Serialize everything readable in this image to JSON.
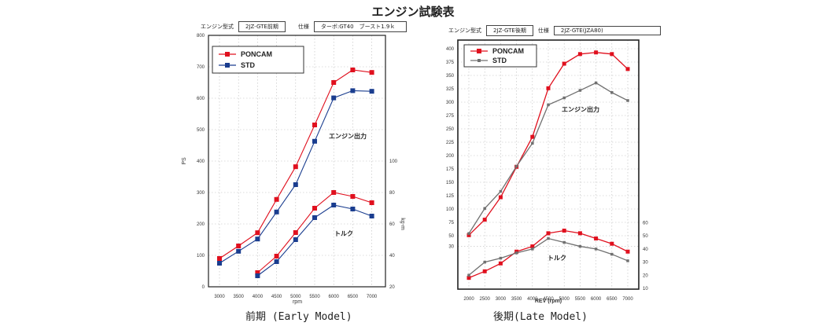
{
  "title": "エンジン試験表",
  "colors": {
    "poncam": "#e0101e",
    "std_early": "#1a3d8f",
    "std_late": "#707070"
  },
  "chart_data": [
    {
      "type": "line",
      "name": "early",
      "caption": "前期 (Early Model)",
      "header": {
        "engine_label": "エンジン型式",
        "engine_value": "2JZ-GTE前期",
        "spec_label": "仕様",
        "spec_value": "ターボ:GT40　ブースト1.9ｋ"
      },
      "xlabel": "rpm",
      "ylabel": "PS",
      "y2label": "kg-m",
      "x": [
        3000,
        3500,
        4000,
        4500,
        5000,
        5500,
        6000,
        6500,
        7000
      ],
      "xticks": [
        "3000",
        "3500",
        "4000",
        "4500",
        "5000",
        "5500",
        "6000",
        "6500",
        "7000"
      ],
      "ylim": [
        0,
        800
      ],
      "yticks": [
        "0",
        "100",
        "200",
        "300",
        "400",
        "500",
        "600",
        "700",
        "800"
      ],
      "y2lim": [
        20,
        180
      ],
      "y2ticks": [
        "20",
        "40",
        "60",
        "80",
        "100"
      ],
      "annotations": {
        "power": "エンジン出力",
        "torque": "トルク"
      },
      "legend": [
        "PONCAM",
        "STD"
      ],
      "legend_position": "top-left",
      "grid": true,
      "series": [
        {
          "name": "PONCAM",
          "kind": "power",
          "values": [
            90,
            130,
            172,
            278,
            382,
            515,
            650,
            690,
            682
          ]
        },
        {
          "name": "STD",
          "kind": "power",
          "values": [
            75,
            113,
            152,
            238,
            325,
            463,
            601,
            624,
            622
          ]
        },
        {
          "name": "PONCAM",
          "kind": "torque",
          "values": [
            null,
            null,
            29,
            39.5,
            54.5,
            70,
            80,
            77.5,
            73.5
          ]
        },
        {
          "name": "STD",
          "kind": "torque",
          "values": [
            null,
            null,
            27,
            36,
            50,
            64,
            72,
            69.5,
            65
          ]
        }
      ]
    },
    {
      "type": "line",
      "name": "late",
      "caption": "後期(Late Model)",
      "header": {
        "engine_label": "エンジン型式",
        "engine_value": "2JZ-GTE後期",
        "spec_label": "仕様",
        "spec_value": "2JZ-GTE(JZA80)"
      },
      "xlabel": "REV (rpm)",
      "ylabel": "",
      "y2label": "",
      "x": [
        2000,
        2500,
        3000,
        3500,
        4000,
        4500,
        5000,
        5500,
        6000,
        6500,
        7000
      ],
      "xticks": [
        "2000",
        "2500",
        "3000",
        "3500",
        "4000",
        "4500",
        "5000",
        "5500",
        "6000",
        "6500",
        "7000"
      ],
      "ylim": [
        0,
        400
      ],
      "yticks": [
        "30",
        "50",
        "75",
        "100",
        "125",
        "150",
        "175",
        "200",
        "225",
        "250",
        "275",
        "300",
        "325",
        "350",
        "375",
        "400"
      ],
      "y2lim": [
        10,
        60
      ],
      "y2ticks": [
        "10",
        "20",
        "30",
        "40",
        "50",
        "60"
      ],
      "annotations": {
        "power": "エンジン出力",
        "torque": "トルク"
      },
      "legend": [
        "PONCAM",
        "STD"
      ],
      "legend_position": "top-left",
      "grid": true,
      "series": [
        {
          "name": "PONCAM",
          "kind": "power",
          "values": [
            51,
            80,
            122,
            179,
            235,
            326,
            372,
            390,
            393,
            390,
            362
          ]
        },
        {
          "name": "STD",
          "kind": "power",
          "values": [
            54,
            101,
            133,
            180,
            223,
            295,
            308,
            322,
            336,
            318,
            303
          ]
        },
        {
          "name": "PONCAM",
          "kind": "torque",
          "values": [
            18,
            23,
            29,
            38,
            42,
            52,
            54,
            52,
            48,
            44,
            38
          ]
        },
        {
          "name": "STD",
          "kind": "torque",
          "values": [
            20,
            30,
            33,
            37,
            40,
            48,
            45,
            42,
            40,
            36,
            31
          ]
        }
      ]
    }
  ]
}
